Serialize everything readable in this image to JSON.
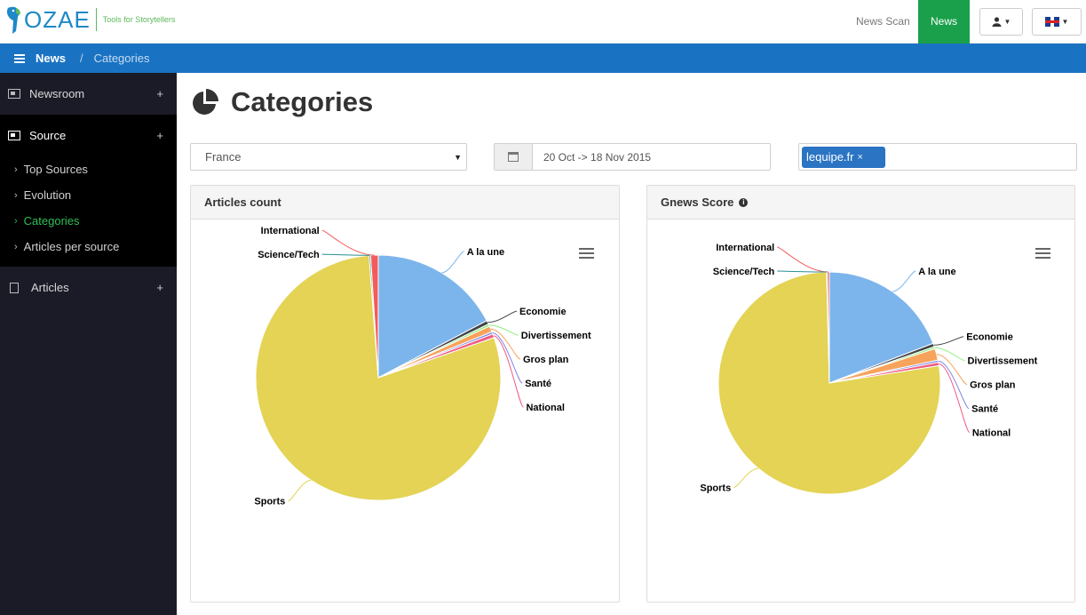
{
  "brand": {
    "name": "OZAE",
    "tagline": "Tools for Storytellers"
  },
  "topnav": {
    "news_scan": "News Scan",
    "news": "News",
    "user_icon": "user-icon",
    "lang_icon": "uk-flag-icon"
  },
  "breadcrumb": {
    "section": "News",
    "separator": "/",
    "current": "Categories"
  },
  "sidebar": {
    "groups": [
      {
        "label": "Newsroom",
        "toggle": "+"
      },
      {
        "label": "Source",
        "toggle": "+",
        "items": [
          "Top Sources",
          "Evolution",
          "Categories",
          "Articles per source"
        ],
        "selected": "Categories"
      },
      {
        "label": "Articles",
        "toggle": "+"
      }
    ]
  },
  "page": {
    "title": "Categories",
    "title_icon": "pie-chart-icon"
  },
  "filters": {
    "country": "France",
    "date_range": "20 Oct -> 18 Nov 2015",
    "source_tag": "lequipe.fr",
    "tag_remove": "×"
  },
  "panels": {
    "left_title": "Articles count",
    "right_title": "Gnews Score"
  },
  "colors": {
    "A la une": "#7cb5ec",
    "Economie": "#434348",
    "Divertissement": "#90ed7d",
    "Gros plan": "#f7a35c",
    "Santé": "#8085e9",
    "National": "#f15c80",
    "Sports": "#e4d354",
    "Science/Tech": "#2b908f",
    "International": "#f45b5b"
  },
  "chart_data": [
    {
      "type": "pie",
      "title": "Articles count",
      "categories": [
        "A la une",
        "Economie",
        "Divertissement",
        "Gros plan",
        "Santé",
        "National",
        "Sports",
        "Science/Tech",
        "International"
      ],
      "values": [
        17.3,
        0.5,
        0.3,
        0.8,
        0.3,
        0.5,
        79.1,
        0.2,
        1.0
      ]
    },
    {
      "type": "pie",
      "title": "Gnews Score",
      "categories": [
        "A la une",
        "Economie",
        "Divertissement",
        "Gros plan",
        "Santé",
        "National",
        "Sports",
        "Science/Tech",
        "International"
      ],
      "values": [
        19.2,
        0.5,
        0.3,
        1.7,
        0.3,
        0.5,
        77.1,
        0.1,
        0.3
      ]
    }
  ]
}
